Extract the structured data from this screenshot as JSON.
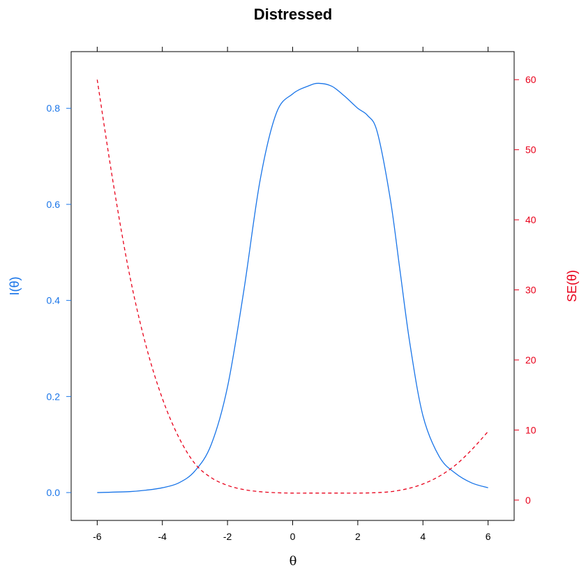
{
  "chart_data": {
    "type": "line",
    "title": "Distressed",
    "xlabel": "θ",
    "ylabel_left": "I(θ)",
    "ylabel_right": "SE(θ)",
    "xlim": [
      -6.8,
      6.8
    ],
    "ylim_left": [
      -0.058,
      0.918
    ],
    "ylim_right": [
      -2.9,
      64.0
    ],
    "x_ticks": [
      -6,
      -4,
      -2,
      0,
      2,
      4,
      6
    ],
    "y_left_ticks": [
      0.0,
      0.2,
      0.4,
      0.6,
      0.8
    ],
    "y_left_tick_labels": [
      "0.0",
      "0.2",
      "0.4",
      "0.6",
      "0.8"
    ],
    "y_right_ticks": [
      0,
      10,
      20,
      30,
      40,
      50,
      60
    ],
    "grid": false,
    "colors": {
      "info": "#1874e8",
      "se": "#e8001a",
      "axis": "#000000"
    },
    "series": [
      {
        "name": "I(θ)",
        "axis": "left",
        "style": "solid",
        "x": [
          -6,
          -5,
          -4.5,
          -4,
          -3.5,
          -3,
          -2.5,
          -2,
          -1.5,
          -1,
          -0.5,
          0,
          0.5,
          0.8,
          1.2,
          1.6,
          2,
          2.3,
          2.6,
          3,
          3.3,
          3.6,
          4,
          4.5,
          5,
          5.5,
          6
        ],
        "values": [
          0.0,
          0.002,
          0.005,
          0.01,
          0.02,
          0.045,
          0.1,
          0.22,
          0.42,
          0.65,
          0.79,
          0.83,
          0.847,
          0.852,
          0.846,
          0.825,
          0.8,
          0.785,
          0.75,
          0.61,
          0.46,
          0.31,
          0.16,
          0.075,
          0.04,
          0.02,
          0.01
        ]
      },
      {
        "name": "SE(θ)",
        "axis": "right",
        "style": "dashed",
        "x": [
          -6,
          -5.5,
          -5,
          -4.5,
          -4,
          -3.5,
          -3,
          -2.5,
          -2,
          -1.5,
          -1,
          -0.5,
          0,
          0.5,
          1,
          1.5,
          2,
          2.5,
          3,
          3.5,
          4,
          4.5,
          5,
          5.5,
          6
        ],
        "values": [
          60.0,
          45.0,
          32.0,
          22.0,
          14.5,
          9.0,
          5.2,
          3.2,
          2.1,
          1.5,
          1.2,
          1.05,
          1.0,
          1.0,
          1.0,
          1.0,
          1.0,
          1.05,
          1.2,
          1.6,
          2.3,
          3.4,
          5.0,
          7.2,
          9.8
        ]
      }
    ]
  }
}
